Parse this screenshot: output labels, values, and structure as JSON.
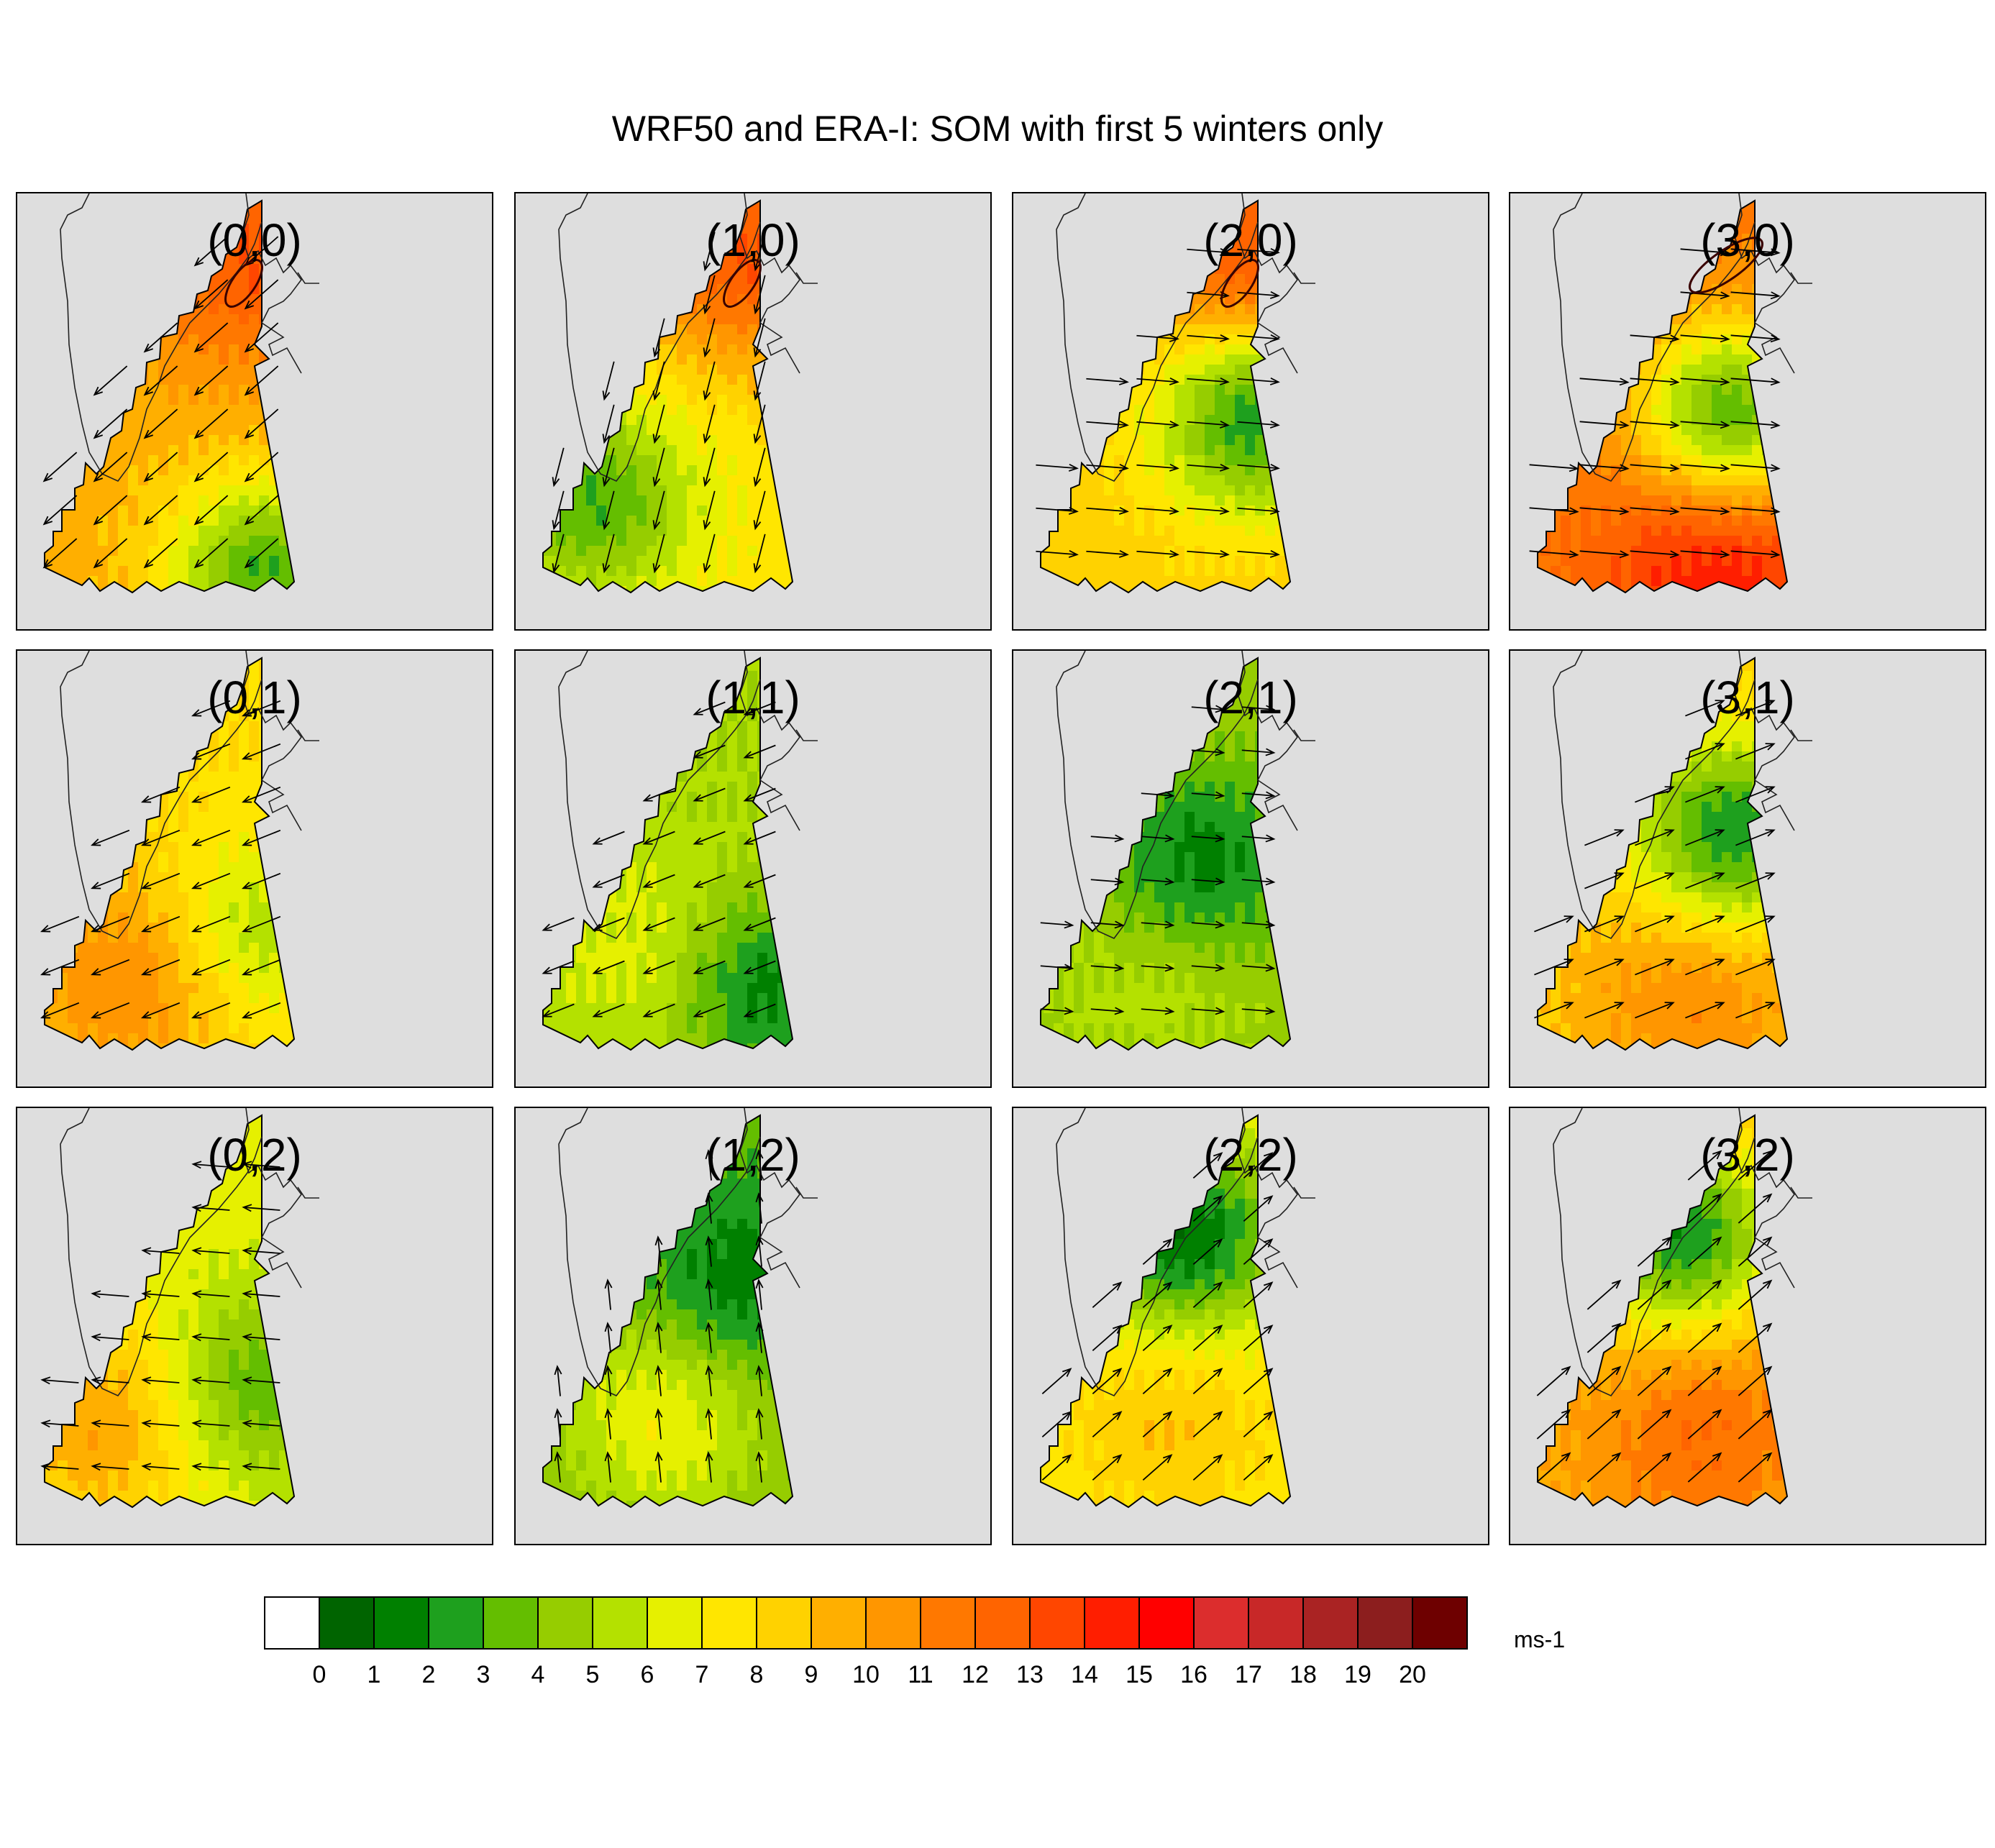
{
  "title": "WRF50 and ERA-I: SOM with first 5 winters only",
  "colorbar": {
    "unit": "ms-1",
    "tick_labels": [
      "0",
      "1",
      "2",
      "3",
      "4",
      "5",
      "6",
      "7",
      "8",
      "9",
      "10",
      "11",
      "12",
      "13",
      "14",
      "15",
      "16",
      "17",
      "18",
      "19",
      "20"
    ],
    "colors": [
      "#ffffff",
      "#006400",
      "#008000",
      "#1ea01e",
      "#64be00",
      "#96cd00",
      "#b4e100",
      "#e6f000",
      "#ffe600",
      "#ffd200",
      "#ffaf00",
      "#ff9600",
      "#ff7800",
      "#ff6400",
      "#ff4600",
      "#ff1e00",
      "#ff0000",
      "#dc2d2d",
      "#c82828",
      "#aa2323",
      "#8c1e1e",
      "#6e0000"
    ]
  },
  "chart_data": {
    "type": "heatmap",
    "description_units": "wind speed (ms-1) with wind vectors; self-organizing map nodes",
    "grid": {
      "columns": 4,
      "rows": 3
    },
    "nodes": [
      {
        "label": "(0,0)",
        "col": 0,
        "row": 0,
        "base_speed": 9.5,
        "max_speed": 13,
        "min_speed": 3,
        "flow_toward": "SW"
      },
      {
        "label": "(1,0)",
        "col": 1,
        "row": 0,
        "base_speed": 7.5,
        "max_speed": 13,
        "min_speed": 3,
        "flow_toward": "SSW"
      },
      {
        "label": "(2,0)",
        "col": 2,
        "row": 0,
        "base_speed": 8.5,
        "max_speed": 13,
        "min_speed": 2,
        "flow_toward": "E"
      },
      {
        "label": "(3,0)",
        "col": 3,
        "row": 0,
        "base_speed": 11.5,
        "max_speed": 15,
        "min_speed": 3,
        "flow_toward": "E"
      },
      {
        "label": "(0,1)",
        "col": 0,
        "row": 1,
        "base_speed": 8,
        "max_speed": 11,
        "min_speed": 5,
        "flow_toward": "WSW"
      },
      {
        "label": "(1,1)",
        "col": 1,
        "row": 1,
        "base_speed": 5,
        "max_speed": 7,
        "min_speed": 1,
        "flow_toward": "WSW"
      },
      {
        "label": "(2,1)",
        "col": 2,
        "row": 1,
        "base_speed": 4.5,
        "max_speed": 6,
        "min_speed": 1,
        "flow_toward": "E"
      },
      {
        "label": "(3,1)",
        "col": 3,
        "row": 1,
        "base_speed": 8.5,
        "max_speed": 11,
        "min_speed": 2,
        "flow_toward": "ENE"
      },
      {
        "label": "(0,2)",
        "col": 0,
        "row": 2,
        "base_speed": 6.5,
        "max_speed": 10,
        "min_speed": 3,
        "flow_toward": "W"
      },
      {
        "label": "(1,2)",
        "col": 1,
        "row": 2,
        "base_speed": 3.5,
        "max_speed": 7,
        "min_speed": 1,
        "flow_toward": "N"
      },
      {
        "label": "(2,2)",
        "col": 2,
        "row": 2,
        "base_speed": 7,
        "max_speed": 9,
        "min_speed": 1,
        "flow_toward": "NE"
      },
      {
        "label": "(3,2)",
        "col": 3,
        "row": 2,
        "base_speed": 9.5,
        "max_speed": 12,
        "min_speed": 2,
        "flow_toward": "NE"
      }
    ]
  }
}
